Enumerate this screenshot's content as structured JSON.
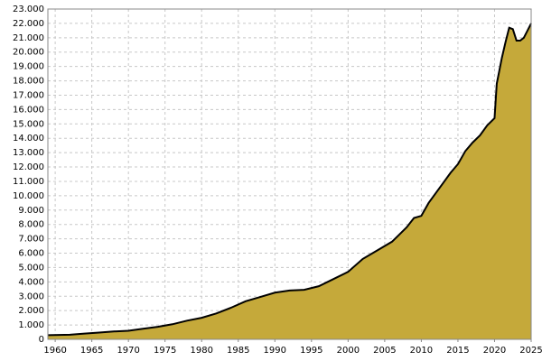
{
  "chart_data": {
    "type": "area",
    "color": "#c5a93a",
    "line_color": "#000000",
    "grid": true,
    "x": [
      1959,
      1962,
      1964,
      1966,
      1968,
      1970,
      1972,
      1974,
      1976,
      1978,
      1980,
      1982,
      1984,
      1986,
      1988,
      1990,
      1992,
      1994,
      1996,
      1998,
      2000,
      2002,
      2004,
      2006,
      2008,
      2009,
      2010,
      2011,
      2012,
      2013,
      2014,
      2015,
      2016,
      2017,
      2018,
      2019,
      2020,
      2020.3,
      2021,
      2021.5,
      2022,
      2022.5,
      2023,
      2023.5,
      2024,
      2025
    ],
    "values": [
      290,
      320,
      400,
      470,
      550,
      600,
      740,
      870,
      1050,
      1300,
      1500,
      1800,
      2200,
      2650,
      2950,
      3250,
      3400,
      3450,
      3700,
      4200,
      4700,
      5600,
      6200,
      6800,
      7800,
      8450,
      8600,
      9500,
      10200,
      10900,
      11600,
      12200,
      13100,
      13700,
      14200,
      14900,
      15400,
      17800,
      19600,
      20700,
      21700,
      21600,
      20800,
      20800,
      21000,
      22000
    ],
    "xlim": [
      1959,
      2025
    ],
    "xticks": [
      1960,
      1965,
      1970,
      1975,
      1980,
      1985,
      1990,
      1995,
      2000,
      2005,
      2010,
      2015,
      2020,
      2025
    ],
    "ylim": [
      0,
      23000
    ],
    "yticks": [
      0,
      {
        "value": 1000,
        "label": "1.000"
      },
      {
        "value": 2000,
        "label": "2.000"
      },
      {
        "value": 3000,
        "label": "3.000"
      },
      {
        "value": 4000,
        "label": "4.000"
      },
      {
        "value": 5000,
        "label": "5.000"
      },
      {
        "value": 6000,
        "label": "6.000"
      },
      {
        "value": 7000,
        "label": "7.000"
      },
      {
        "value": 8000,
        "label": "8.000"
      },
      {
        "value": 9000,
        "label": "9.000"
      },
      {
        "value": 10000,
        "label": "10.000"
      },
      {
        "value": 11000,
        "label": "11.000"
      },
      {
        "value": 12000,
        "label": "12.000"
      },
      {
        "value": 13000,
        "label": "13.000"
      },
      {
        "value": 14000,
        "label": "14.000"
      },
      {
        "value": 15000,
        "label": "15.000"
      },
      {
        "value": 16000,
        "label": "16.000"
      },
      {
        "value": 17000,
        "label": "17.000"
      },
      {
        "value": 18000,
        "label": "18.000"
      },
      {
        "value": 19000,
        "label": "19.000"
      },
      {
        "value": 20000,
        "label": "20.000"
      },
      {
        "value": 21000,
        "label": "21.000"
      },
      {
        "value": 22000,
        "label": "22.000"
      },
      {
        "value": 23000,
        "label": "23.000"
      }
    ]
  }
}
